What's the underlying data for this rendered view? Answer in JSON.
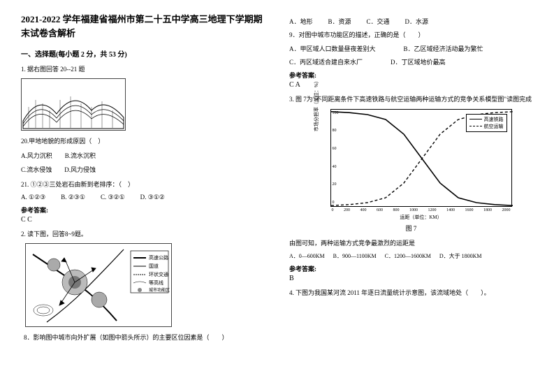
{
  "title": "2021-2022 学年福建省福州市第二十五中学高三地理下学期期末试卷含解析",
  "section1_head": "一、选择题(每小题 2 分，共 53 分)",
  "q1_intro": "1. 据右图回答 20--21 题",
  "q20": "20.甲地地貌的形成原因（　）",
  "q20_opts": [
    "A.风力沉积",
    "B.流水沉积",
    "C.流水侵蚀",
    "D.风力侵蚀"
  ],
  "q21": "21. ①②③三处岩石由新到老排序：（　）",
  "q21_opts": [
    "A. ①②③",
    "B. ②③①",
    "C. ③②①",
    "D. ③①②"
  ],
  "ans_label": "参考答案:",
  "ans1_val": "C C",
  "q2_intro": "2. 读下图，回答8~9题。",
  "q2_8": "8．影响图中城市向外扩展（如图中箭头所示）的主要区位因素是（　　）",
  "q2_8_opts": [
    "A．地形",
    "B．资源",
    "C．交通",
    "D．水源"
  ],
  "q2_9": "9．对图中城市功能区的描述，正确的是（　　）",
  "q2_9_opts": [
    "A．甲区域人口数量昼夜差别大",
    "B．乙区域经济活动最为繁忙",
    "C．丙区域适合建自来水厂",
    "D．丁区域地价最高"
  ],
  "ans2_val": "C A",
  "q3_intro": "3. 图 7为\"不同距离条件下高速铁路与航空运输两种运输方式的竞争关系模型图\"读图完成",
  "chart": {
    "type": "line",
    "x_label": "运距（单位：KM）",
    "y_label": "市场分担率（单位：%）",
    "x_ticks": [
      0,
      200,
      400,
      600,
      800,
      1000,
      1200,
      1400,
      1600,
      1800,
      2000
    ],
    "y_ticks": [
      0,
      20,
      40,
      60,
      80,
      100
    ],
    "series": [
      {
        "name": "高速铁路",
        "style": "solid",
        "color": "#000000",
        "points": [
          [
            0,
            98
          ],
          [
            200,
            97
          ],
          [
            400,
            95
          ],
          [
            600,
            90
          ],
          [
            800,
            75
          ],
          [
            1000,
            50
          ],
          [
            1200,
            25
          ],
          [
            1400,
            10
          ],
          [
            1600,
            5
          ],
          [
            1800,
            3
          ],
          [
            2000,
            2
          ]
        ]
      },
      {
        "name": "航空运输",
        "style": "dashed",
        "color": "#000000",
        "points": [
          [
            0,
            2
          ],
          [
            200,
            3
          ],
          [
            400,
            5
          ],
          [
            600,
            10
          ],
          [
            800,
            25
          ],
          [
            1000,
            50
          ],
          [
            1200,
            75
          ],
          [
            1400,
            90
          ],
          [
            1600,
            95
          ],
          [
            1800,
            97
          ],
          [
            2000,
            98
          ]
        ]
      }
    ],
    "xlim": [
      0,
      2000
    ],
    "ylim": [
      0,
      100
    ],
    "background": "#ffffff",
    "border": "#000000"
  },
  "chart_caption": "图 7",
  "q3_sub": "由图可知，两种运输方式竞争最激烈的运距是",
  "q3_opts": [
    "A．0—600KM",
    "B．900—1100KM",
    "C．1200—1600KM",
    "D．大于 1800KM"
  ],
  "ans3_val": "B",
  "q4": "4. 下图为我国某河流 2011 年逐日流量统计示意图，该流域地处（　　）。",
  "map_legend": [
    "高速公路",
    "国道",
    "环状交通",
    "等高线",
    "城市功能区"
  ]
}
